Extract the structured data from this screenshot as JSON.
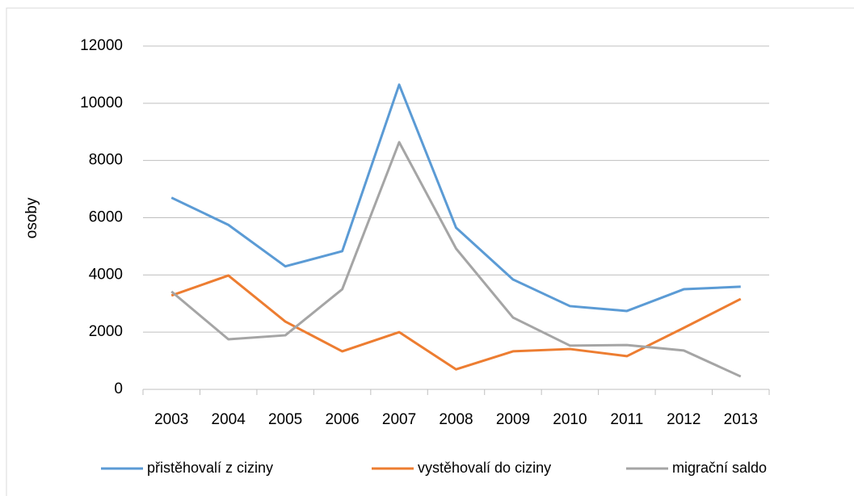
{
  "chart_data": {
    "type": "line",
    "y_label": "osoby",
    "categories": [
      "2003",
      "2004",
      "2005",
      "2006",
      "2007",
      "2008",
      "2009",
      "2010",
      "2011",
      "2012",
      "2013"
    ],
    "series": [
      {
        "name": "přistěhovalí z ciziny",
        "color": "#5b9bd5",
        "values": [
          6700,
          5750,
          4300,
          4830,
          10650,
          5650,
          3840,
          2910,
          2740,
          3500,
          3590
        ]
      },
      {
        "name": "vystěhovalí do ciziny",
        "color": "#ed7d31",
        "values": [
          3280,
          3980,
          2370,
          1330,
          2000,
          700,
          1330,
          1410,
          1160,
          2150,
          3160
        ]
      },
      {
        "name": "migrační saldo",
        "color": "#a5a5a5",
        "values": [
          3420,
          1750,
          1890,
          3500,
          8640,
          4920,
          2510,
          1530,
          1550,
          1360,
          450
        ]
      }
    ],
    "ylim": [
      0,
      12000
    ],
    "yticks": [
      0,
      2000,
      4000,
      6000,
      8000,
      10000,
      12000
    ],
    "grid": true,
    "legend": "bottom"
  }
}
